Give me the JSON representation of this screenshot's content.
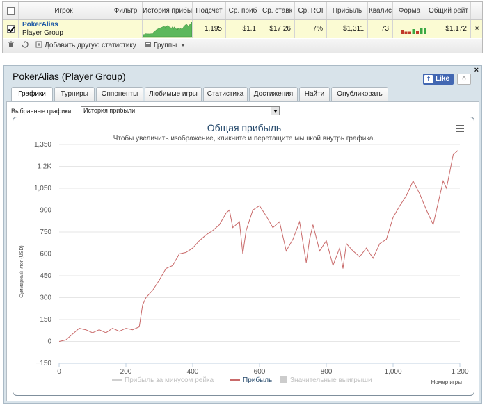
{
  "grid": {
    "columns": [
      {
        "key": "check",
        "label": ""
      },
      {
        "key": "player",
        "label": "Игрок"
      },
      {
        "key": "filter",
        "label": "Фильтр"
      },
      {
        "key": "history",
        "label": "История прибы"
      },
      {
        "key": "count",
        "label": "Подсчет"
      },
      {
        "key": "avg_profit",
        "label": "Ср. приб"
      },
      {
        "key": "avg_stake",
        "label": "Ср. ставк"
      },
      {
        "key": "avg_roi",
        "label": "Ср. ROI"
      },
      {
        "key": "profit",
        "label": "Прибыль"
      },
      {
        "key": "quali",
        "label": "Квалис"
      },
      {
        "key": "form",
        "label": "Форма"
      },
      {
        "key": "total",
        "label": "Общий рейт"
      }
    ],
    "row": {
      "player_name": "PokerAlias",
      "player_group": "Player Group",
      "count": "1,195",
      "avg_profit": "$1.1",
      "avg_stake": "$17.26",
      "avg_roi": "7%",
      "profit": "$1,311",
      "quali": "73",
      "total": "$1,172",
      "close": "×",
      "form": [
        {
          "value": 0.6,
          "color": "#c0392b"
        },
        {
          "value": 0.35,
          "color": "#c0392b"
        },
        {
          "value": 0.35,
          "color": "#c0392b"
        },
        {
          "value": 0.7,
          "color": "#3aa843"
        },
        {
          "value": 0.45,
          "color": "#c0392b"
        },
        {
          "value": 0.9,
          "color": "#3aa843"
        },
        {
          "value": 0.9,
          "color": "#3aa843"
        },
        {
          "value": 0.9,
          "color": "#3aa843"
        }
      ]
    },
    "footer": {
      "add_stats": "Добавить другую статистику",
      "groups": "Группы"
    }
  },
  "panel": {
    "title": "PokerAlias (Player Group)",
    "like_label": "Like",
    "like_count": "0",
    "close": "×",
    "tabs": [
      "Графики",
      "Турниры",
      "Оппоненты",
      "Любимые игры",
      "Статистика",
      "Достижения",
      "Найти",
      "Опубликовать"
    ],
    "active_tab": 0,
    "select_label": "Выбранные графики:",
    "select_value": "История прибыли"
  },
  "chart_data": {
    "type": "line",
    "title": "Общая прибыль",
    "subtitle": "Чтобы увеличить изображение, кликните и перетащите мышкой внутрь графика.",
    "xlabel": "Номер игры",
    "ylabel": "Суммарный итог (USD)",
    "xlim": [
      0,
      1200
    ],
    "ylim": [
      -150,
      1350
    ],
    "x_ticks": [
      0,
      200,
      400,
      600,
      800,
      1000,
      1200
    ],
    "x_tick_labels": [
      "0",
      "200",
      "400",
      "600",
      "800",
      "1,000",
      "1,200"
    ],
    "y_ticks": [
      -150,
      0,
      150,
      300,
      450,
      600,
      750,
      900,
      1050,
      1200,
      1350
    ],
    "y_tick_labels": [
      "−150",
      "0",
      "150",
      "300",
      "450",
      "600",
      "750",
      "900",
      "1,050",
      "1.2K",
      "1,350"
    ],
    "grid": true,
    "legend": [
      "Прибыль за минусом рейка",
      "Прибыль",
      "Значительные выигрыши"
    ],
    "legend_placement": "bottom",
    "line_color": "#c96a6a",
    "series": [
      {
        "name": "Прибыль",
        "x": [
          0,
          20,
          40,
          60,
          80,
          100,
          120,
          140,
          160,
          180,
          200,
          220,
          240,
          250,
          260,
          280,
          300,
          320,
          340,
          360,
          380,
          400,
          420,
          440,
          460,
          480,
          500,
          510,
          520,
          540,
          550,
          560,
          580,
          600,
          620,
          640,
          660,
          680,
          700,
          720,
          740,
          750,
          760,
          780,
          800,
          820,
          840,
          850,
          860,
          880,
          900,
          920,
          940,
          960,
          980,
          1000,
          1020,
          1040,
          1060,
          1080,
          1100,
          1120,
          1140,
          1150,
          1160,
          1180,
          1195
        ],
        "y": [
          0,
          10,
          50,
          90,
          80,
          60,
          80,
          60,
          90,
          70,
          90,
          80,
          100,
          250,
          300,
          350,
          420,
          500,
          520,
          600,
          610,
          640,
          690,
          730,
          760,
          800,
          880,
          900,
          780,
          820,
          600,
          760,
          900,
          930,
          860,
          780,
          820,
          620,
          700,
          820,
          540,
          700,
          800,
          620,
          690,
          520,
          640,
          500,
          670,
          620,
          580,
          640,
          570,
          670,
          700,
          850,
          930,
          1000,
          1100,
          1010,
          900,
          800,
          1000,
          1100,
          1050,
          1280,
          1310
        ]
      }
    ]
  }
}
